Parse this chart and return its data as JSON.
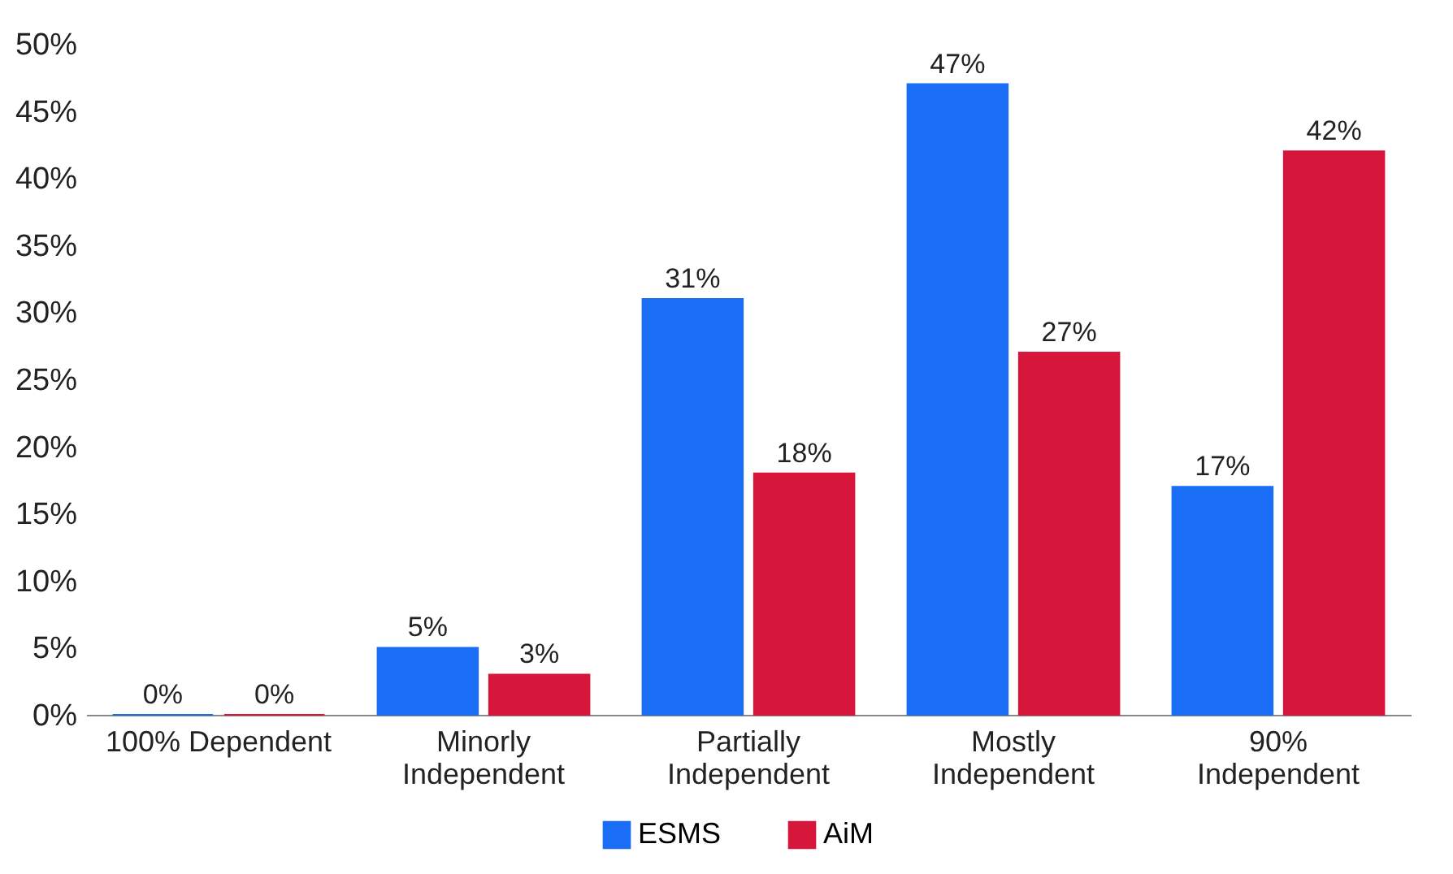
{
  "chart_data": {
    "type": "bar",
    "categories": [
      "100% Dependent",
      "Minorly Independent",
      "Partially Independent",
      "Mostly Independent",
      "90% Independent"
    ],
    "series": [
      {
        "name": "ESMS",
        "color": "#1a6ef5",
        "values": [
          0,
          5,
          31,
          47,
          17
        ],
        "value_labels": [
          "0%",
          "5%",
          "31%",
          "47%",
          "17%"
        ]
      },
      {
        "name": "AiM",
        "color": "#d7163c",
        "values": [
          0,
          3,
          18,
          27,
          42
        ],
        "value_labels": [
          "0%",
          "3%",
          "18%",
          "27%",
          "42%"
        ]
      }
    ],
    "ylim": [
      0,
      50
    ],
    "yticks": [
      {
        "value": 0,
        "label": "0%"
      },
      {
        "value": 5,
        "label": "5%"
      },
      {
        "value": 10,
        "label": "10%"
      },
      {
        "value": 15,
        "label": "15%"
      },
      {
        "value": 20,
        "label": "20%"
      },
      {
        "value": 25,
        "label": "25%"
      },
      {
        "value": 30,
        "label": "30%"
      },
      {
        "value": 35,
        "label": "35%"
      },
      {
        "value": 40,
        "label": "40%"
      },
      {
        "value": 45,
        "label": "45%"
      },
      {
        "value": 50,
        "label": "50%"
      }
    ],
    "legend": "bottom"
  }
}
